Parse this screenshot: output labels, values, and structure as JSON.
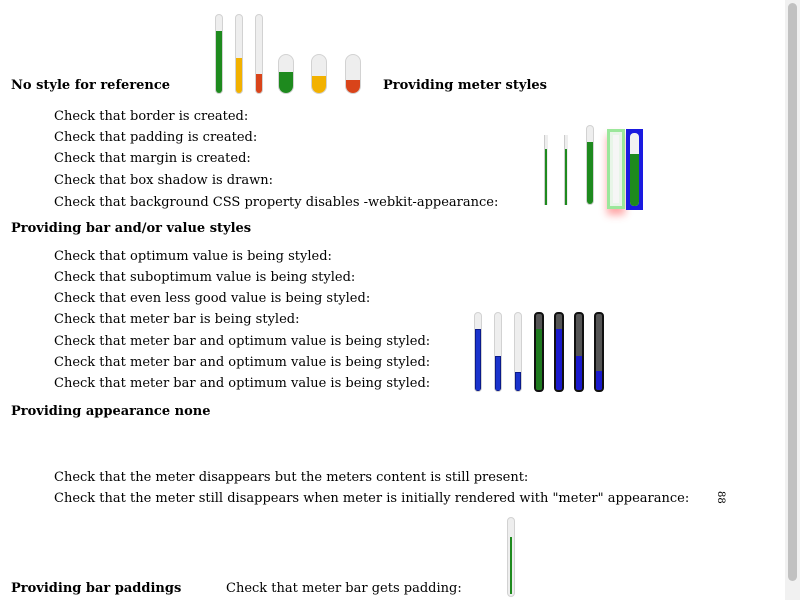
{
  "headings": {
    "no_style": "No style for reference",
    "meter_styles": "Providing meter styles",
    "bar_value": "Providing bar and/or value styles",
    "appearance_none": "Providing appearance none",
    "bar_paddings": "Providing bar paddings"
  },
  "meter_styles_checks": [
    "Check that border is created:",
    "Check that padding is created:",
    "Check that margin is created:",
    "Check that box shadow is drawn:",
    "Check that background CSS property disables -webkit-appearance:"
  ],
  "bar_value_checks": [
    "Check that optimum value is being styled:",
    "Check that suboptimum value is being styled:",
    "Check that even less good value is being styled:",
    "Check that meter bar is being styled:",
    "Check that meter bar and optimum value is being styled:",
    "Check that meter bar and optimum value is being styled:",
    "Check that meter bar and optimum value is being styled:"
  ],
  "appearance_none_checks": [
    "Check that the meter disappears but the meters content is still present:",
    "Check that the meter still disappears when meter is initially rendered with \"meter\" appearance:"
  ],
  "meter_content_glyph": "88",
  "bar_paddings_check": "Check that meter bar gets padding:",
  "reference_meters": [
    {
      "level": 0.8,
      "color": "#1e8a1e"
    },
    {
      "level": 0.45,
      "color": "#f2b100"
    },
    {
      "level": 0.25,
      "color": "#d9441a"
    },
    {
      "level": 0.55,
      "color": "#1e8a1e"
    },
    {
      "level": 0.45,
      "color": "#f2b100"
    },
    {
      "level": 0.35,
      "color": "#d9441a"
    }
  ],
  "colors": {
    "optimum": "#1e8a1e",
    "suboptimum": "#f2b100",
    "even_less_good": "#d9441a",
    "styled_blue": "#1a33cc",
    "track": "#eeeeee"
  }
}
